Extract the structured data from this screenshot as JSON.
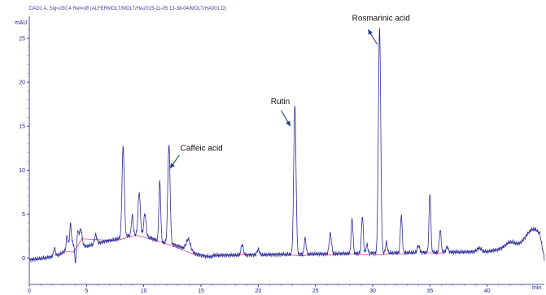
{
  "chart_data": {
    "type": "line",
    "header": "DAD1 A, Sig=280,4 Ref=off (ALFERMOLT/MOLT/HA2015-11-05 13-38-04/MOLT/HA001.D)",
    "ylabel": "mAU",
    "xlabel": "min",
    "xlim": [
      0,
      45
    ],
    "ylim": [
      -3,
      27.5
    ],
    "x_ticks": [
      0,
      5,
      10,
      15,
      20,
      25,
      30,
      35,
      40
    ],
    "y_ticks": [
      0,
      5,
      10,
      15,
      20,
      25
    ],
    "colors": {
      "trace": "#2b2b9e",
      "baseline": "#d9287a",
      "axis": "#1a1a8c",
      "arrow": "#1f3f8a"
    },
    "baseline_level": 0.8,
    "peaks": [
      {
        "t": 2.2,
        "h": 0.9,
        "w": 0.08
      },
      {
        "t": 3.3,
        "h": 1.4,
        "w": 0.07
      },
      {
        "t": 3.6,
        "h": 2.3,
        "w": 0.07
      },
      {
        "t": 4.2,
        "h": 1.5,
        "w": 0.1
      },
      {
        "t": 4.5,
        "h": 1.8,
        "w": 0.12
      },
      {
        "t": 5.8,
        "h": 1.0,
        "w": 0.1
      },
      {
        "t": 8.2,
        "h": 10.2,
        "w": 0.1
      },
      {
        "t": 9.0,
        "h": 2.2,
        "w": 0.08
      },
      {
        "t": 9.6,
        "h": 4.8,
        "w": 0.1
      },
      {
        "t": 10.1,
        "h": 2.5,
        "w": 0.1
      },
      {
        "t": 11.4,
        "h": 6.8,
        "w": 0.08
      },
      {
        "t": 12.2,
        "h": 11.2,
        "w": 0.1
      },
      {
        "t": 13.9,
        "h": 1.3,
        "w": 0.18
      },
      {
        "t": 18.6,
        "h": 1.2,
        "w": 0.1
      },
      {
        "t": 20.0,
        "h": 0.6,
        "w": 0.1
      },
      {
        "t": 23.2,
        "h": 16.9,
        "w": 0.1
      },
      {
        "t": 24.1,
        "h": 1.8,
        "w": 0.08
      },
      {
        "t": 26.3,
        "h": 2.3,
        "w": 0.1
      },
      {
        "t": 28.2,
        "h": 3.9,
        "w": 0.08
      },
      {
        "t": 29.1,
        "h": 4.2,
        "w": 0.08
      },
      {
        "t": 29.5,
        "h": 1.0,
        "w": 0.08
      },
      {
        "t": 30.6,
        "h": 25.6,
        "w": 0.1
      },
      {
        "t": 31.2,
        "h": 1.2,
        "w": 0.08
      },
      {
        "t": 32.5,
        "h": 4.3,
        "w": 0.08
      },
      {
        "t": 34.0,
        "h": 0.8,
        "w": 0.1
      },
      {
        "t": 35.0,
        "h": 6.6,
        "w": 0.08
      },
      {
        "t": 35.9,
        "h": 2.5,
        "w": 0.08
      },
      {
        "t": 36.5,
        "h": 0.6,
        "w": 0.1
      },
      {
        "t": 39.3,
        "h": 0.4,
        "w": 0.2
      },
      {
        "t": 42.0,
        "h": 0.6,
        "w": 0.4
      },
      {
        "t": 44.0,
        "h": 1.6,
        "w": 0.6
      }
    ],
    "humps": [
      {
        "t": 6.5,
        "h": 1.5,
        "w": 2.0
      },
      {
        "t": 9.8,
        "h": 2.0,
        "w": 1.5
      },
      {
        "t": 12.8,
        "h": 1.0,
        "w": 1.2
      },
      {
        "t": 3.8,
        "h": 1.0,
        "w": 0.5
      }
    ],
    "dips": [
      {
        "t": 4.05,
        "d": 2.6,
        "w": 0.08
      }
    ],
    "annotations": [
      {
        "label": "Caffeic acid",
        "x": 13.2,
        "y": 12.2,
        "arrow_from": [
          13.1,
          11.7
        ],
        "arrow_to": [
          12.3,
          10.2
        ]
      },
      {
        "label": "Rutin",
        "x": 21.1,
        "y": 17.5,
        "arrow_from": [
          22.0,
          16.8
        ],
        "arrow_to": [
          22.8,
          15.0
        ]
      },
      {
        "label": "Rosmarinic acid",
        "x": 28.2,
        "y": 27.0,
        "arrow_from": [
          30.4,
          24.3
        ],
        "arrow_to": [
          29.6,
          26.0
        ]
      }
    ]
  }
}
